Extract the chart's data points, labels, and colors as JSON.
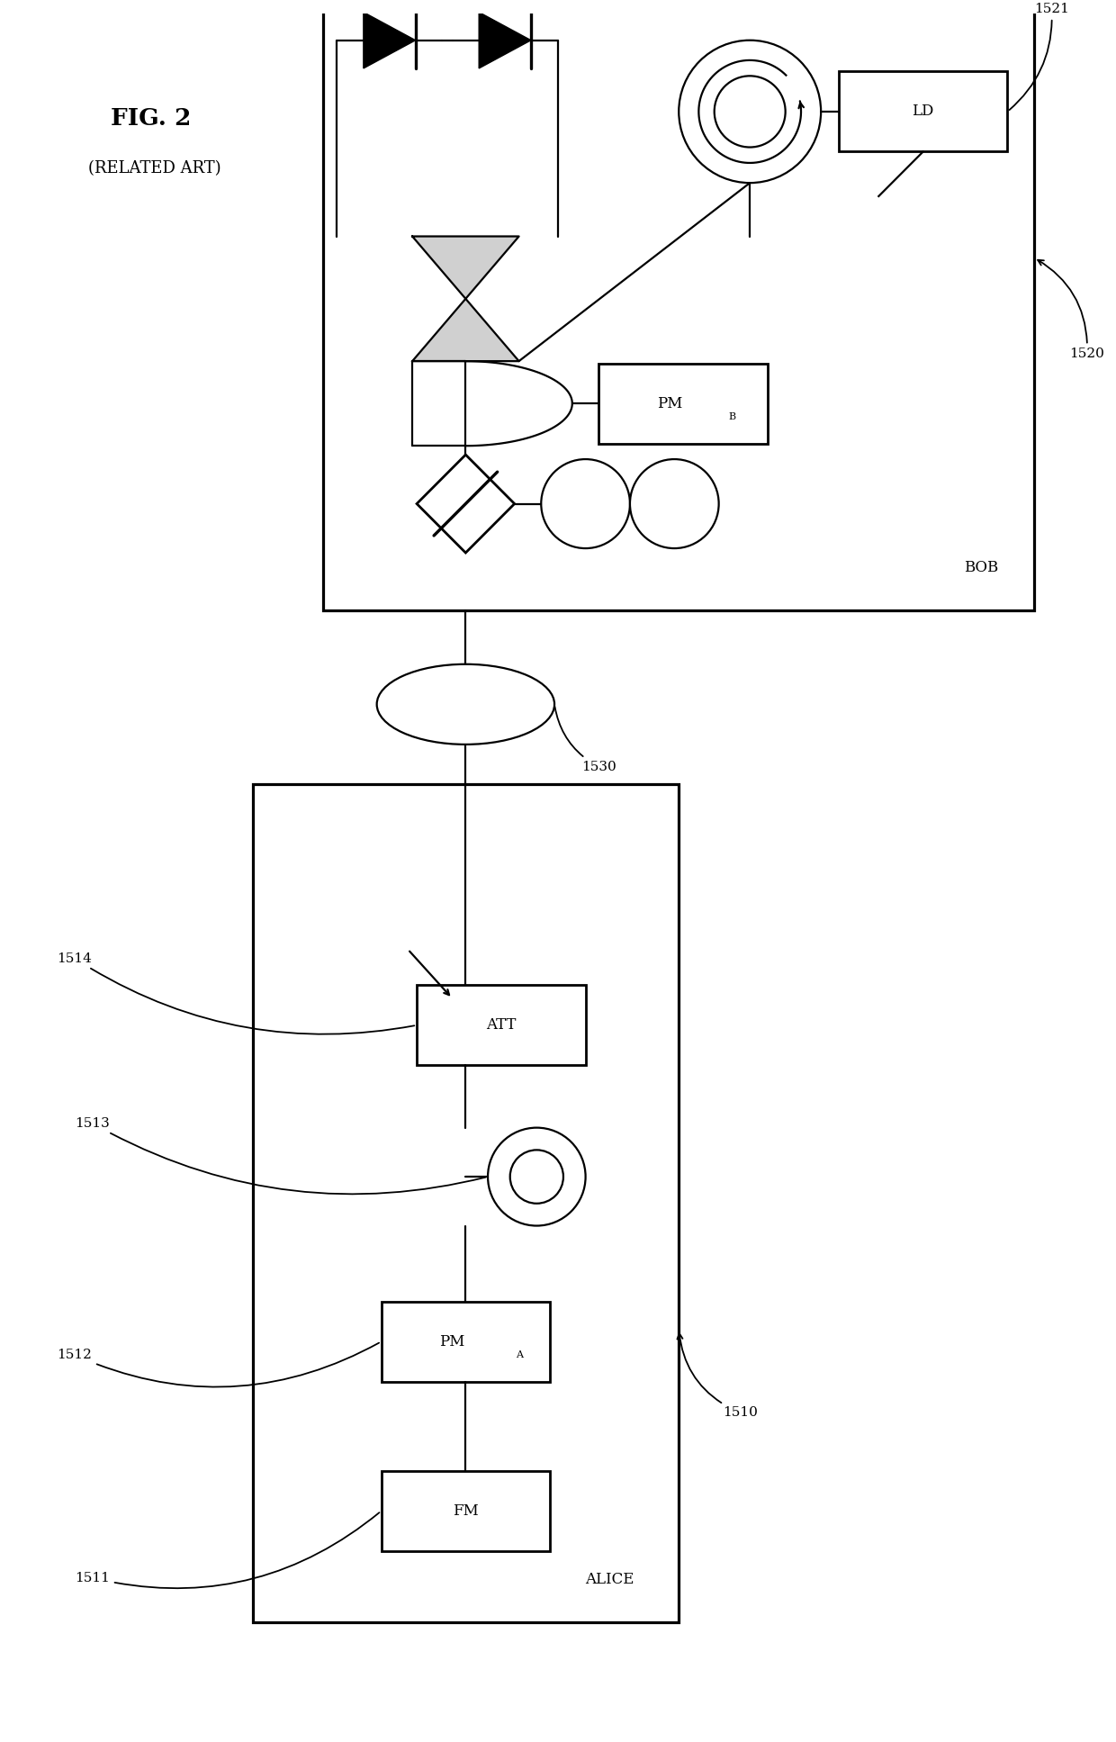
{
  "title": "FIG. 2",
  "subtitle": "(RELATED ART)",
  "bg_color": "#ffffff",
  "line_color": "#000000",
  "fig_width": 12.4,
  "fig_height": 19.35,
  "alice_label": "ALICE",
  "bob_label": "BOB",
  "fm_label": "FM",
  "pma_label": "PM",
  "pma_sub": "A",
  "att_label": "ATT",
  "pmb_label": "PM",
  "pmb_sub": "B",
  "ld_label": "LD",
  "r1510": "1510",
  "r1511": "1511",
  "r1512": "1512",
  "r1513": "1513",
  "r1514": "1514",
  "r1520": "1520",
  "r1521": "1521",
  "r1530": "1530"
}
